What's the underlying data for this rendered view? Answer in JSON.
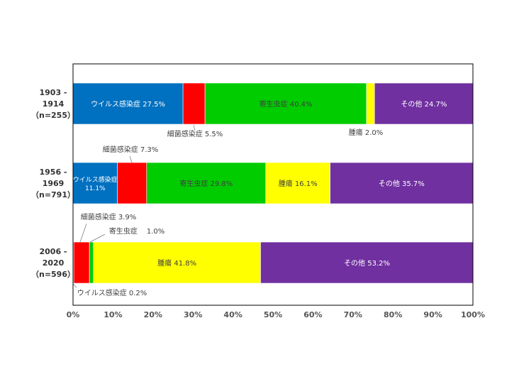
{
  "chart_data": {
    "type": "bar",
    "orientation": "horizontal",
    "stacked": true,
    "percent": true,
    "title": "",
    "xlabel": "",
    "ylabel": "",
    "xlim": [
      0,
      100
    ],
    "x_ticks": [
      "0%",
      "10%",
      "20%",
      "30%",
      "40%",
      "50%",
      "60%",
      "70%",
      "80%",
      "90%",
      "100%"
    ],
    "grid": false,
    "legend": "none",
    "categories": [
      {
        "line1": "1903 -",
        "line2": "1914",
        "line3": "（n=255）"
      },
      {
        "line1": "1956 -",
        "line2": "1969",
        "line3": "（n=791）"
      },
      {
        "line1": "2006 -",
        "line2": "2020",
        "line3": "（n=596）"
      }
    ],
    "series": [
      {
        "name": "ウイルス感染症",
        "color": "#0070C0",
        "values": [
          27.5,
          11.1,
          0.2
        ]
      },
      {
        "name": "細菌感染症",
        "color": "#FF0000",
        "values": [
          5.5,
          7.3,
          3.9
        ]
      },
      {
        "name": "寄生虫症",
        "color": "#00CC00",
        "values": [
          40.4,
          29.8,
          1.0
        ]
      },
      {
        "name": "腫瘍",
        "color": "#FFFF00",
        "values": [
          2.0,
          16.1,
          41.8
        ]
      },
      {
        "name": "その他",
        "color": "#7030A0",
        "values": [
          24.7,
          35.7,
          53.2
        ]
      }
    ],
    "data_labels": [
      [
        {
          "text": "ウイルス感染症 27.5%",
          "color": "#ffffff"
        },
        {
          "text": "細菌感染症 5.5%",
          "color": "#404040"
        },
        {
          "text": "寄生虫症 40.4%",
          "color": "#404040"
        },
        {
          "text": "腫瘍 2.0%",
          "color": "#404040"
        },
        {
          "text": "その他 24.7%",
          "color": "#ffffff"
        }
      ],
      [
        {
          "text": "ウイルス感染症",
          "text2": "11.1%",
          "color": "#ffffff"
        },
        {
          "text": "細菌感染症 7.3%",
          "color": "#404040"
        },
        {
          "text": "寄生虫症 29.8%",
          "color": "#404040"
        },
        {
          "text": "腫瘍 16.1%",
          "color": "#404040"
        },
        {
          "text": "その他 35.7%",
          "color": "#ffffff"
        }
      ],
      [
        {
          "text": "ウイルス感染症 0.2%",
          "color": "#404040"
        },
        {
          "text": "細菌感染症 3.9%",
          "color": "#404040"
        },
        {
          "text": "寄生虫症　 1.0%",
          "color": "#404040"
        },
        {
          "text": "腫瘍 41.8%",
          "color": "#404040"
        },
        {
          "text": "その他 53.2%",
          "color": "#ffffff"
        }
      ]
    ]
  }
}
